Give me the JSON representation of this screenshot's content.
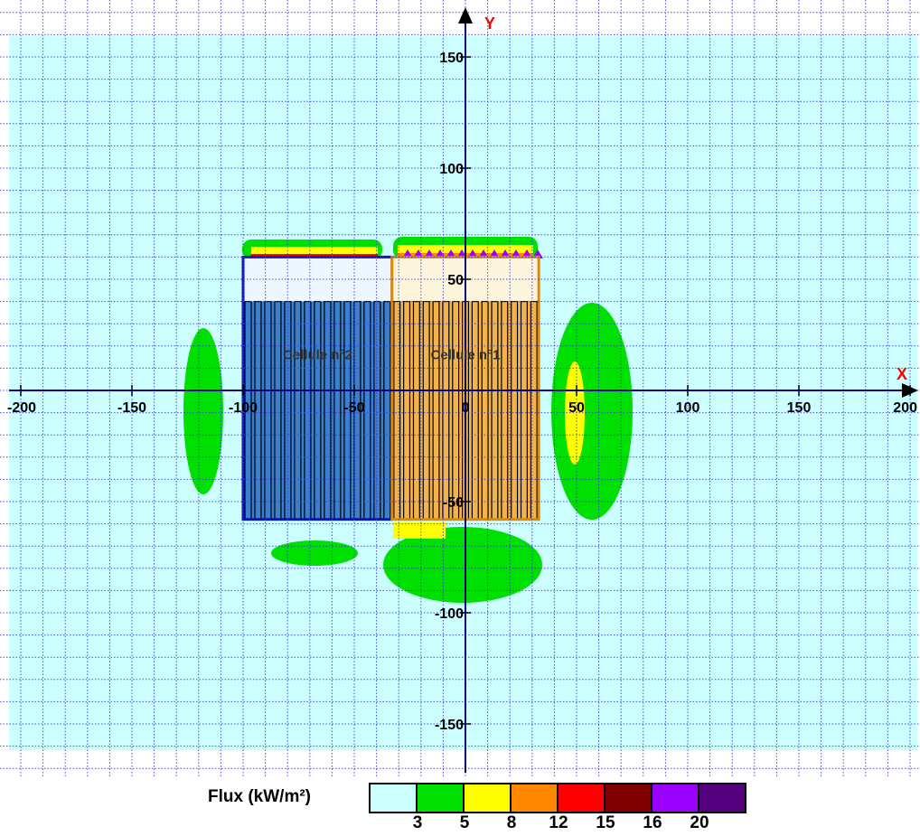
{
  "diagram": {
    "axes": {
      "x_name": "X",
      "y_name": "Y",
      "x_range": [
        -200,
        200
      ],
      "y_range": [
        -170,
        170
      ],
      "x_ticks": [
        "-200",
        "-150",
        "-100",
        "-50",
        "0",
        "50",
        "100",
        "150",
        "200"
      ],
      "y_ticks": [
        "150",
        "100",
        "50",
        "-50",
        "-100",
        "-150"
      ],
      "x_tick_values": [
        -200,
        -150,
        -100,
        -50,
        0,
        50,
        100,
        150,
        200
      ],
      "y_tick_values": [
        150,
        100,
        50,
        -50,
        -100,
        -150
      ],
      "grid_step": 10,
      "grid_color": "#3b3bd6",
      "axis_color": "#000080",
      "axis_name_color": "#ff0000"
    },
    "cells": [
      {
        "label": "Cellule n°2",
        "x_range": [
          -100,
          -33
        ],
        "y_range": [
          -58,
          60
        ],
        "outline_color": "#1010c0",
        "fill_color": "#3a7fd0",
        "top_fill": "#eef6ff"
      },
      {
        "label": "Cellule n°1",
        "x_range": [
          -33,
          33
        ],
        "y_range": [
          -58,
          60
        ],
        "outline_color": "#e08a00",
        "fill_color": "#f2b44a",
        "top_fill": "#fdf6dc"
      }
    ]
  },
  "legend": {
    "title": "Flux (kW/m²)",
    "colors": [
      "#ccffff",
      "#00e000",
      "#ffff00",
      "#ff8800",
      "#ff0000",
      "#800000",
      "#9900ff",
      "#55007f"
    ],
    "thresholds": [
      "3",
      "5",
      "8",
      "12",
      "15",
      "16",
      "20"
    ]
  }
}
